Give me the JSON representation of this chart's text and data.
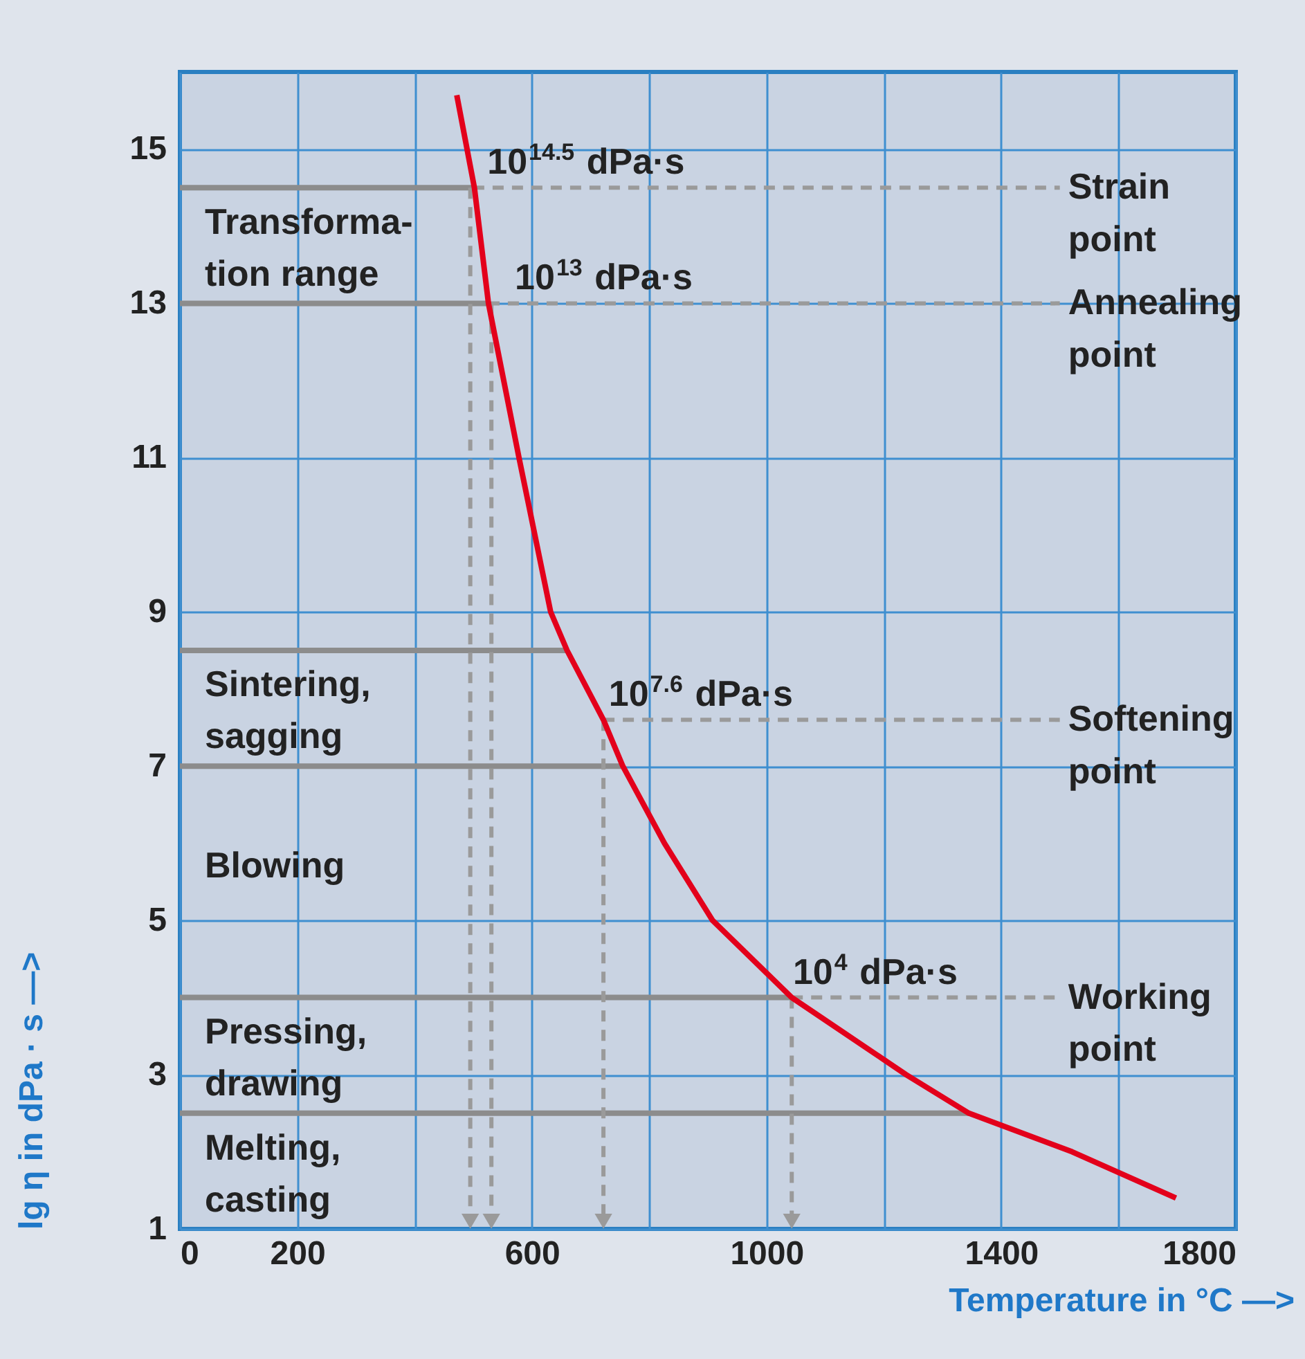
{
  "chart_data": {
    "type": "line",
    "xlabel": "Temperature in °C —>",
    "ylabel": "lg η in dPa · s —>",
    "xlim": [
      0,
      1800
    ],
    "ylim": [
      1,
      16
    ],
    "xticks": [
      0,
      200,
      {
        "value": 400,
        "label": null
      },
      600,
      {
        "value": 800,
        "label": null
      },
      1000,
      {
        "value": 1200,
        "label": null
      },
      1400,
      {
        "value": 1600,
        "label": null
      },
      1800
    ],
    "yticks": [
      1,
      3,
      5,
      7,
      9,
      11,
      13,
      15
    ],
    "grid": true,
    "series": [
      {
        "color": "#8c8c8c",
        "x": [
          0,
          500
        ],
        "values": [
          14.5,
          14.5
        ]
      },
      {
        "color": "#8c8c8c",
        "x": [
          0,
          526
        ],
        "values": [
          13,
          13
        ]
      },
      {
        "color": "#8c8c8c",
        "x": [
          0,
          660
        ],
        "values": [
          8.5,
          8.5
        ]
      },
      {
        "color": "#8c8c8c",
        "x": [
          0,
          755
        ],
        "values": [
          7,
          7
        ]
      },
      {
        "color": "#8c8c8c",
        "x": [
          0,
          1043
        ],
        "values": [
          4,
          4
        ]
      },
      {
        "color": "#8c8c8c",
        "x": [
          0,
          1345
        ],
        "values": [
          2.5,
          2.5
        ]
      },
      {
        "color": "#9a9a9a",
        "line_style": "dashed",
        "x": [
          500,
          1500
        ],
        "values": [
          14.5,
          14.5
        ]
      },
      {
        "color": "#9a9a9a",
        "line_style": "dashed",
        "x": [
          526,
          1500
        ],
        "values": [
          13,
          13
        ]
      },
      {
        "color": "#9a9a9a",
        "line_style": "dashed",
        "x": [
          722,
          1500
        ],
        "values": [
          7.6,
          7.6
        ]
      },
      {
        "color": "#9a9a9a",
        "line_style": "dashed",
        "x": [
          1043,
          1500
        ],
        "values": [
          4,
          4
        ]
      },
      {
        "color": "#9a9a9a",
        "line_style": "dashed",
        "marker": "triangle",
        "x": [
          495,
          495
        ],
        "values": [
          14.5,
          1.1
        ]
      },
      {
        "color": "#9a9a9a",
        "line_style": "dashed",
        "marker": "triangle",
        "x": [
          531,
          531
        ],
        "values": [
          13,
          1.1
        ]
      },
      {
        "color": "#9a9a9a",
        "line_style": "dashed",
        "marker": "triangle",
        "x": [
          722,
          722
        ],
        "values": [
          7.6,
          1.1
        ]
      },
      {
        "color": "#9a9a9a",
        "line_style": "dashed",
        "marker": "triangle",
        "x": [
          1043,
          1043
        ],
        "values": [
          4,
          1.1
        ]
      },
      {
        "color": "#e3001b",
        "x": [
          472,
          502,
          526,
          578,
          632,
          660,
          722,
          755,
          826,
          908,
          1043,
          1238,
          1345,
          1521,
          1698
        ],
        "values": [
          15.7,
          14.5,
          13,
          11,
          9,
          8.5,
          7.6,
          7,
          6,
          5,
          4,
          3,
          2.5,
          2,
          1.4
        ]
      }
    ],
    "annotations": [
      {
        "text": "10$^{14.5}$ dPa·s",
        "x": 524,
        "y": 14.5
      },
      {
        "text": "Strain\npoint",
        "x": 1500,
        "y": 14.5
      },
      "Transforma-\ntion range",
      {
        "text": "10$^{13}$ dPa·s",
        "x": 571,
        "y": 13
      },
      {
        "text": "Annealing\npoint",
        "x": 1500,
        "y": 13
      },
      "Sintering,\nsagging",
      {
        "text": "10$^{7.6}$ dPa·s",
        "x": 731,
        "y": 7.6
      },
      {
        "text": "Softening\npoint",
        "x": 1500,
        "y": 7.6
      },
      "Blowing",
      {
        "text": "10$^{4}$ dPa·s",
        "x": 1045,
        "y": 4
      },
      {
        "text": "Working\npoint",
        "x": 1500,
        "y": 4
      },
      "Pressing,\ndrawing",
      "Melting,\ncasting"
    ]
  }
}
